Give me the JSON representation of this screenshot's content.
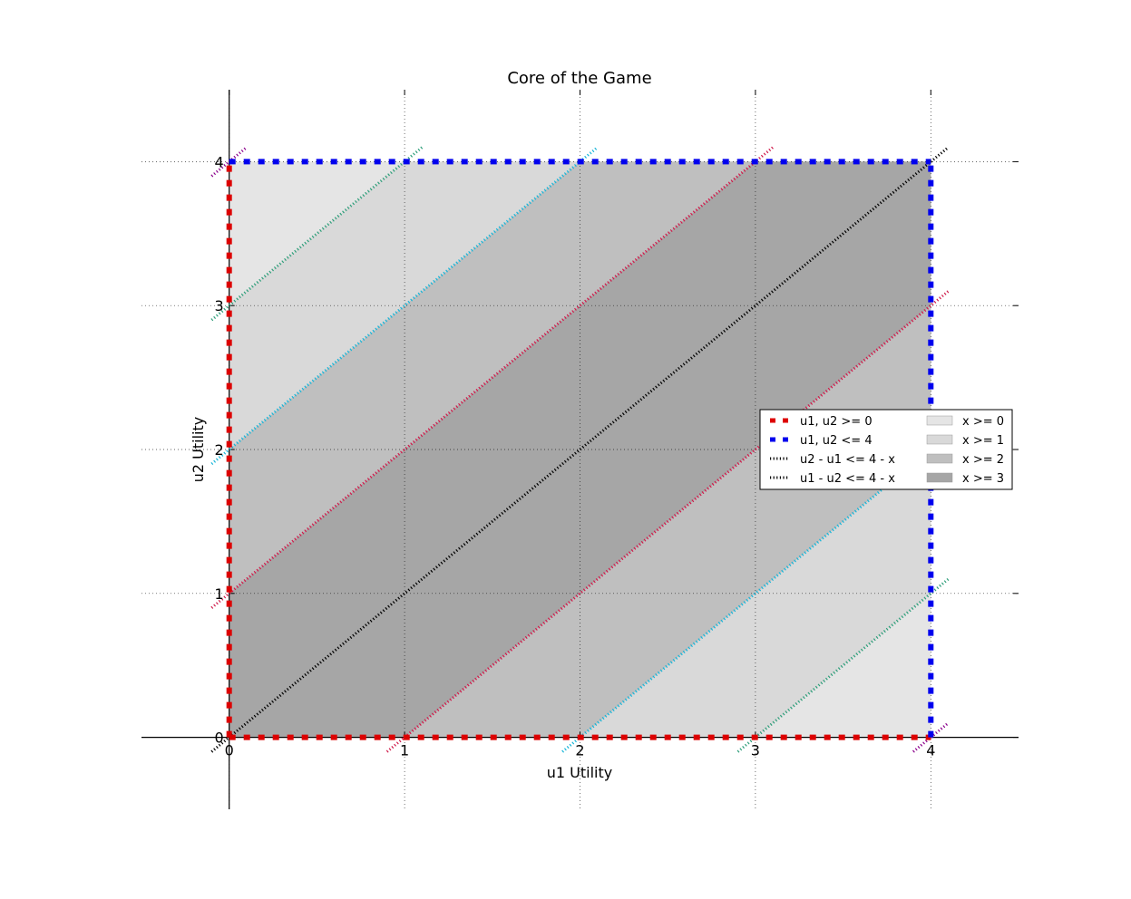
{
  "chart_data": {
    "type": "area",
    "title": "Core of the Game",
    "xlabel": "u1 Utility",
    "ylabel": "u2 Utility",
    "xlim": [
      -0.5,
      4.5
    ],
    "ylim": [
      -0.5,
      4.5
    ],
    "xticks": [
      "0",
      "1",
      "2",
      "3",
      "4"
    ],
    "yticks": [
      "0",
      "1",
      "2",
      "3",
      "4"
    ],
    "grid": true,
    "legend_position": "center-right",
    "regions": [
      {
        "name": "x >= 0",
        "x": 0,
        "color": "#e5e5e5"
      },
      {
        "name": "x >= 1",
        "x": 1,
        "color": "#d9d9d9"
      },
      {
        "name": "x >= 2",
        "x": 2,
        "color": "#bfbfbf"
      },
      {
        "name": "x >= 3",
        "x": 3,
        "color": "#a6a6a6"
      }
    ],
    "boundary_series": [
      {
        "name": "u1, u2 >= 0",
        "color": "#dd0000",
        "style": "dashed",
        "points": [
          [
            0,
            0
          ],
          [
            4,
            0
          ],
          [
            0,
            0
          ],
          [
            0,
            4
          ]
        ]
      },
      {
        "name": "u1, u2 <= 4",
        "color": "#0000ee",
        "style": "dashed",
        "points": [
          [
            0,
            4
          ],
          [
            4,
            4
          ],
          [
            4,
            0
          ],
          [
            4,
            4
          ]
        ]
      },
      {
        "name": "u2 - u1 <= 4 - x",
        "color": "#000000",
        "style": "dotted",
        "points": []
      },
      {
        "name": "u1 - u2 <= 4 - x",
        "color": "#000000",
        "style": "dotted",
        "points": []
      }
    ],
    "diagonal_lines": [
      {
        "intercept": 4,
        "color": "#8b008b"
      },
      {
        "intercept": 3,
        "color": "#2e9e7a"
      },
      {
        "intercept": 2,
        "color": "#17b5d8"
      },
      {
        "intercept": 1,
        "color": "#d01a4a"
      },
      {
        "intercept": 0,
        "color": "#000000"
      },
      {
        "intercept": -1,
        "color": "#d01a4a"
      },
      {
        "intercept": -2,
        "color": "#17b5d8"
      },
      {
        "intercept": -3,
        "color": "#2e9e7a"
      },
      {
        "intercept": -4,
        "color": "#8b008b"
      }
    ]
  }
}
